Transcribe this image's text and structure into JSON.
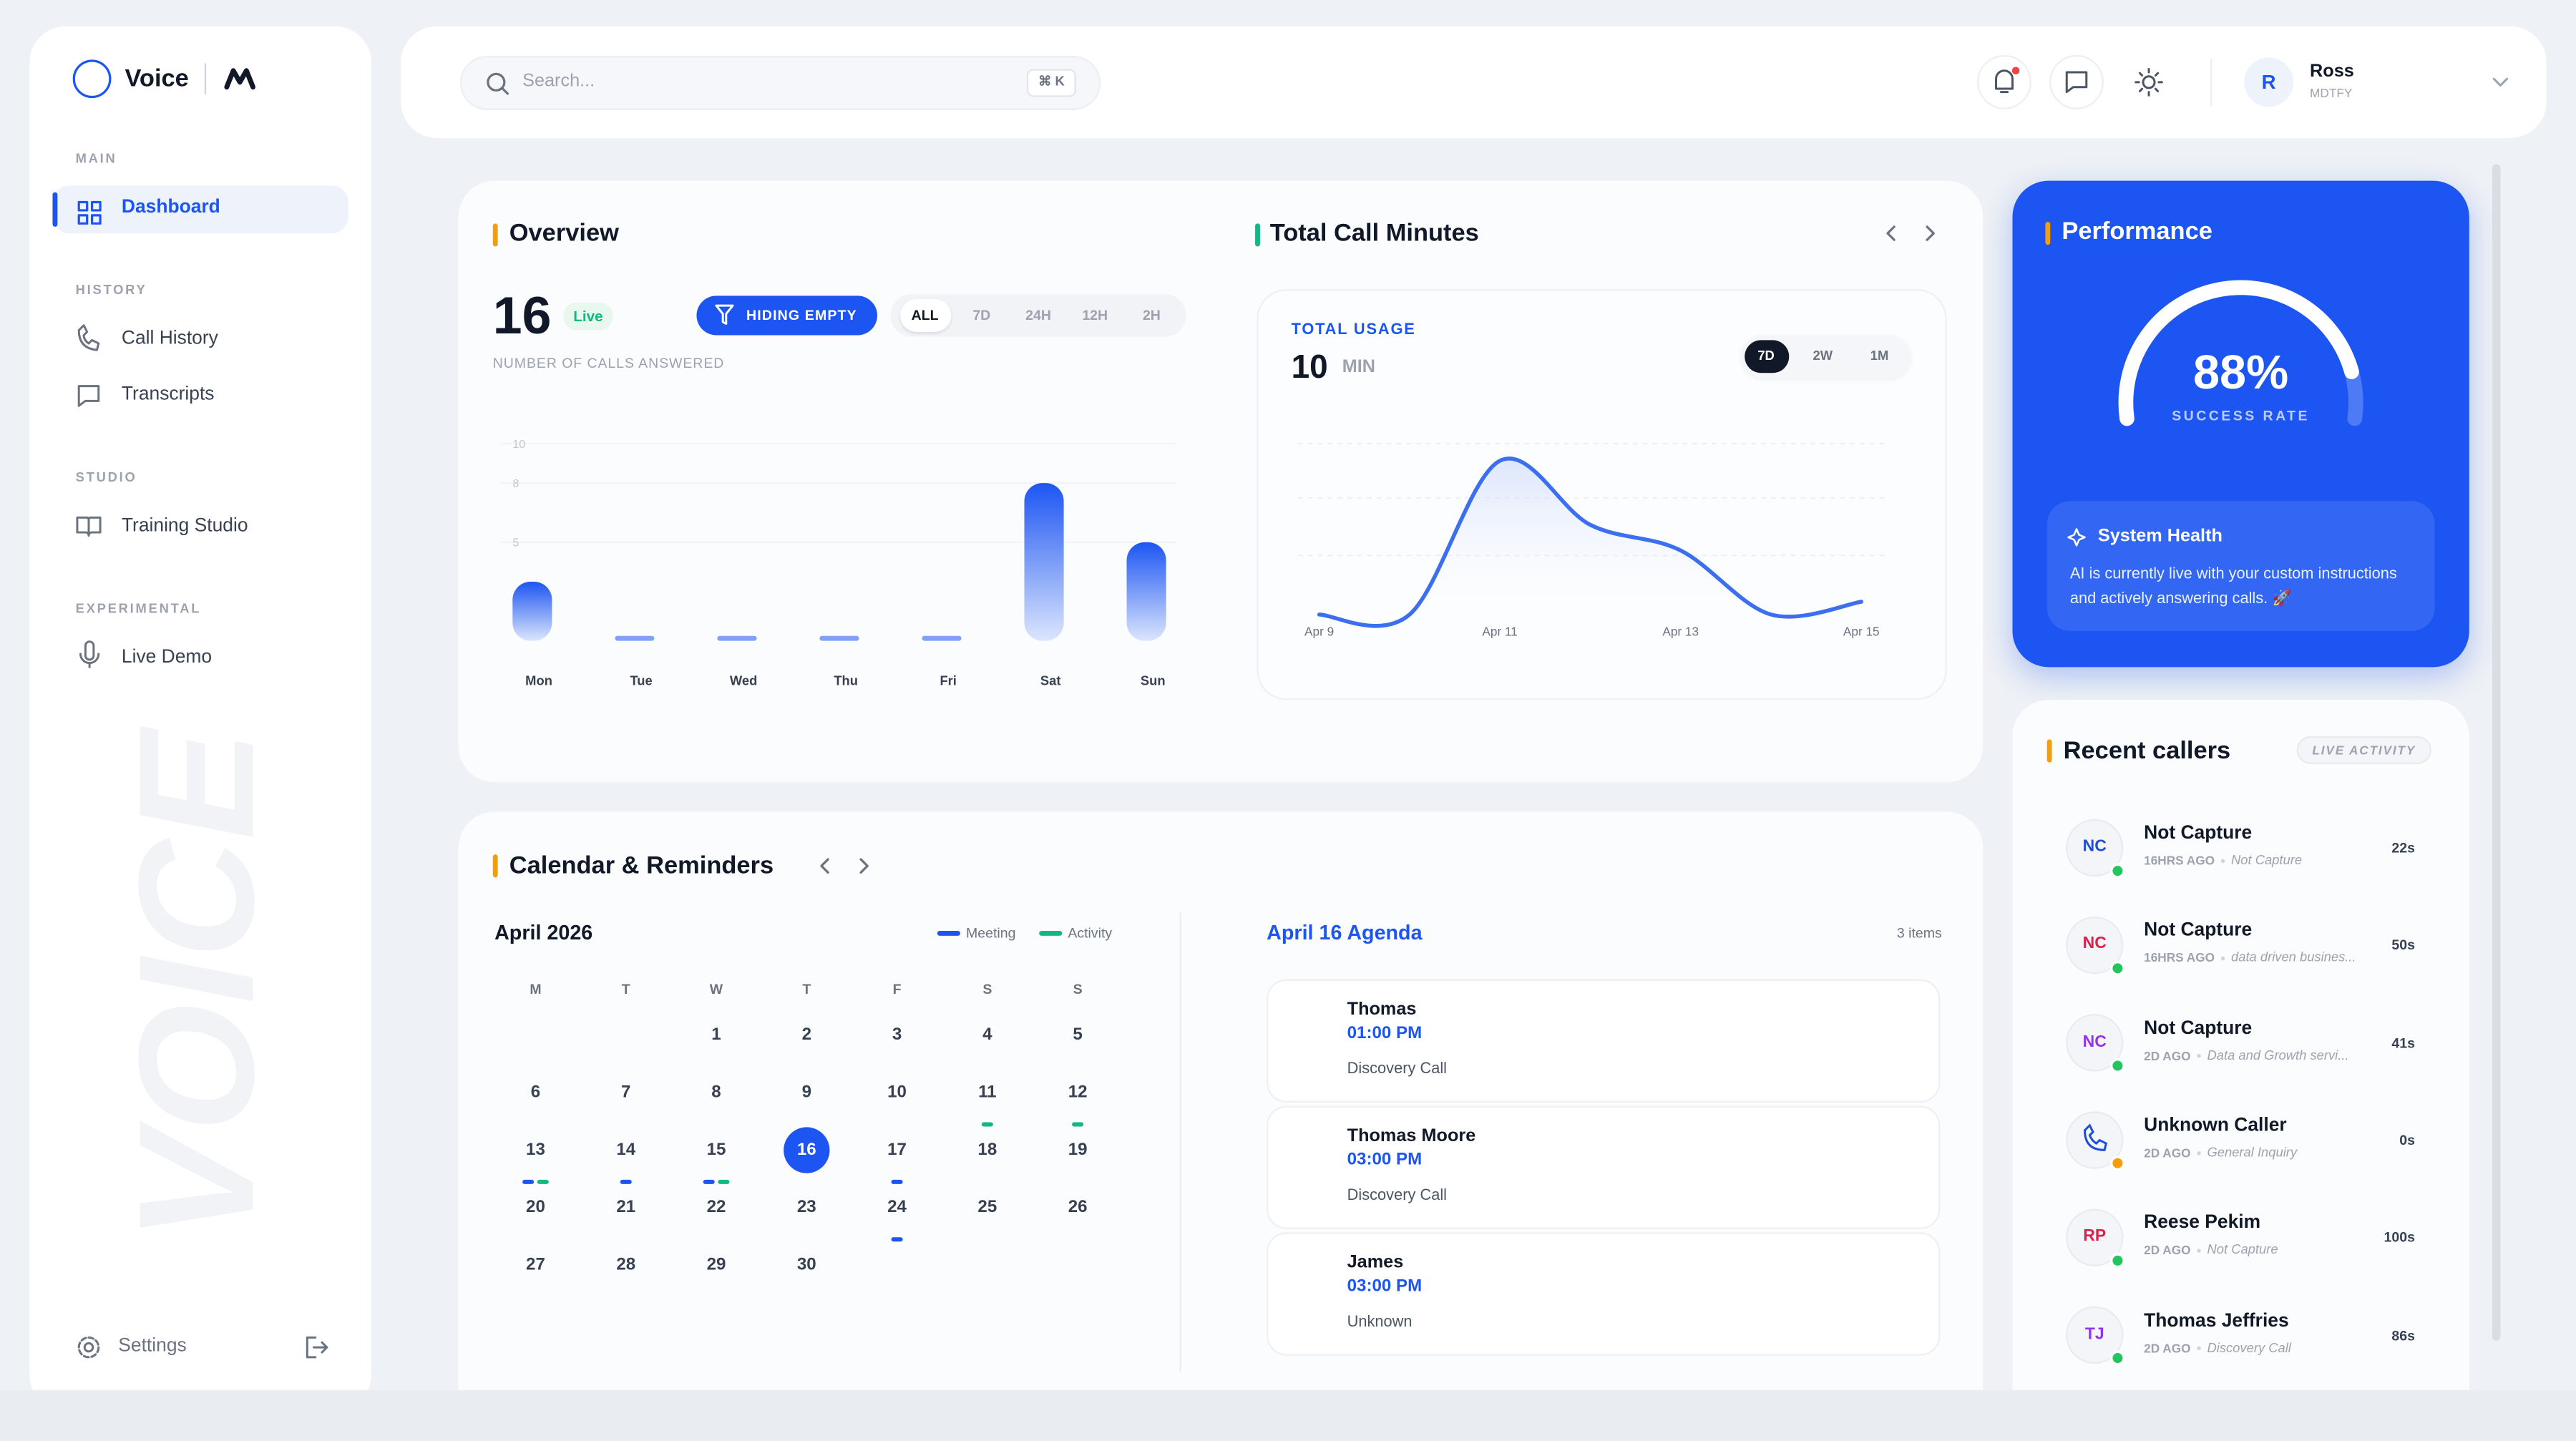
{
  "sidebar": {
    "brand": "Voice",
    "sections": [
      {
        "title": "MAIN",
        "items": [
          "Dashboard"
        ]
      },
      {
        "title": "HISTORY",
        "items": [
          "Call History",
          "Transcripts"
        ]
      },
      {
        "title": "STUDIO",
        "items": [
          "Training Studio"
        ]
      },
      {
        "title": "EXPERIMENTAL",
        "items": [
          "Live Demo"
        ]
      }
    ],
    "watermark": "VOICE",
    "settings": "Settings"
  },
  "header": {
    "search": "Search...",
    "shortcut": "⌘ K",
    "avatar": "R",
    "user": "Ross",
    "org": "MDTFY"
  },
  "overview": {
    "title": "Overview",
    "count": 16,
    "status": "Live",
    "filter": "HIDING EMPTY",
    "ranges": [
      "ALL",
      "7D",
      "24H",
      "12H",
      "2H"
    ],
    "caption": "NUMBER OF CALLS ANSWERED"
  },
  "minutes": {
    "title": "Total Call Minutes",
    "label": "TOTAL USAGE",
    "total": 10,
    "unit": "MIN",
    "ranges": [
      "7D",
      "2W",
      "1M"
    ]
  },
  "chart_data": [
    {
      "type": "bar",
      "categories": [
        "Mon",
        "Tue",
        "Wed",
        "Thu",
        "Fri",
        "Sat",
        "Sun"
      ],
      "values": [
        3,
        0,
        0,
        0,
        0,
        8,
        5
      ],
      "color": "#1c55f2",
      "ylim": [
        0,
        10
      ],
      "yticks": [
        5,
        8,
        10
      ]
    },
    {
      "type": "line",
      "categories": [
        "Apr 9",
        null,
        "Apr 11",
        null,
        "Apr 13",
        null,
        "Apr 15"
      ],
      "values": [
        0,
        0,
        4.8,
        2.8,
        2,
        0,
        0.4
      ],
      "color": "#3b6ff0",
      "ylim": [
        0,
        5
      ]
    }
  ],
  "performance": {
    "title": "Performance",
    "rate": {
      "value": 88,
      "label": "88%"
    },
    "rate_range": [
      0,
      100
    ],
    "caption": "SUCCESS RATE",
    "health_title": "System Health",
    "health_text": "AI is currently live with your custom instructions and actively answering calls. 🚀"
  },
  "callers": {
    "title": "Recent callers",
    "badge": "LIVE ACTIVITY",
    "items": [
      {
        "initials": "NC",
        "color": "#1d4ed8",
        "name": "Not Capture",
        "ago": "16HRS AGO",
        "note": "Not Capture",
        "duration": "22s",
        "status": "#22c55e"
      },
      {
        "initials": "NC",
        "color": "#e11d48",
        "name": "Not Capture",
        "ago": "16HRS AGO",
        "note": "data driven busines...",
        "duration": "50s",
        "status": "#22c55e"
      },
      {
        "initials": "NC",
        "color": "#9333ea",
        "name": "Not Capture",
        "ago": "2D AGO",
        "note": "Data and Growth servi...",
        "duration": "41s",
        "status": "#22c55e"
      },
      {
        "color": "#1d4ed8",
        "name": "Unknown Caller",
        "ago": "2D AGO",
        "note": "General Inquiry",
        "duration": "0s",
        "status": "#f59e0b"
      },
      {
        "initials": "RP",
        "color": "#e11d48",
        "name": "Reese Pekim",
        "ago": "2D AGO",
        "note": "Not Capture",
        "duration": "100s",
        "status": "#22c55e"
      },
      {
        "initials": "TJ",
        "color": "#9333ea",
        "name": "Thomas Jeffries",
        "ago": "2D AGO",
        "note": "Discovery Call",
        "duration": "86s",
        "status": "#22c55e"
      }
    ]
  },
  "calendar": {
    "title": "Calendar & Reminders",
    "month": "April 2026",
    "legend": [
      {
        "name": "Meeting",
        "color": "#1c55f2"
      },
      {
        "name": "Activity",
        "color": "#10b981"
      }
    ],
    "weekdays": [
      "M",
      "T",
      "W",
      "T",
      "F",
      "S",
      "S"
    ],
    "days": [
      1,
      2,
      3,
      4,
      5,
      6,
      7,
      8,
      9,
      10,
      11,
      12,
      13,
      14,
      15,
      16,
      17,
      18,
      19,
      20,
      21,
      22,
      23,
      24,
      25,
      26,
      27,
      28,
      29,
      30
    ],
    "selected": 16,
    "events": [
      {
        "day": 11,
        "kinds": [
          "Activity"
        ]
      },
      {
        "day": 12,
        "kinds": [
          "Activity"
        ]
      },
      {
        "day": 13,
        "kinds": [
          "Meeting",
          "Activity"
        ]
      },
      {
        "day": 14,
        "kinds": [
          "Meeting"
        ]
      },
      {
        "day": 15,
        "kinds": [
          "Meeting",
          "Activity"
        ]
      },
      {
        "day": 17,
        "kinds": [
          "Meeting"
        ]
      },
      {
        "day": 24,
        "kinds": [
          "Meeting"
        ]
      }
    ]
  },
  "agenda": {
    "title": "April 16 Agenda",
    "count": "3 items",
    "items": [
      {
        "name": "Thomas",
        "time": "01:00 PM",
        "type": "Discovery Call"
      },
      {
        "name": "Thomas Moore",
        "time": "03:00 PM",
        "type": "Discovery Call"
      },
      {
        "name": "James",
        "time": "03:00 PM",
        "type": "Unknown"
      }
    ]
  }
}
